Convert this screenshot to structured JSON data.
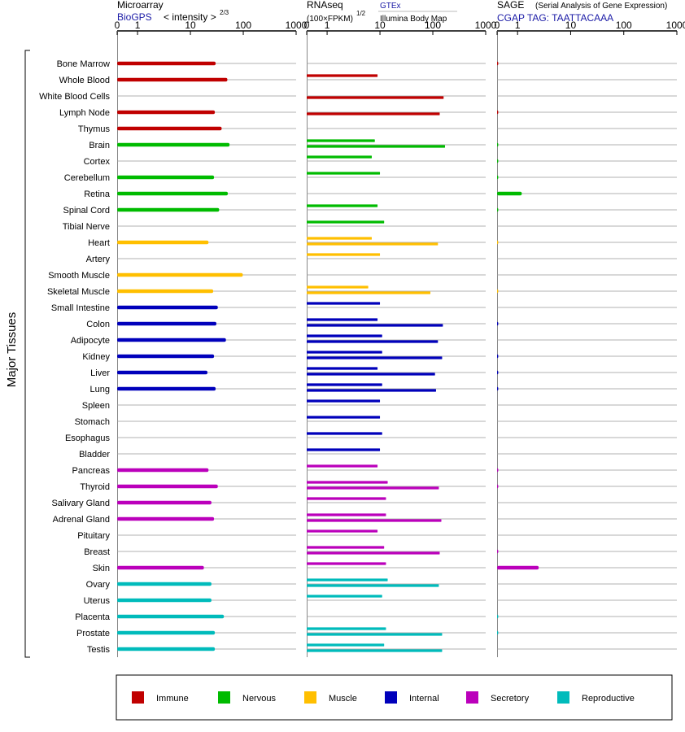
{
  "panels": {
    "microarray": {
      "title": "Microarray",
      "subtitle": "BioGPS",
      "scale_label": "< intensity >",
      "scale_exp": "2/3"
    },
    "rnaseq": {
      "title": "RNAseq",
      "unit_label": "(100×FPKM)",
      "unit_exp": "1/2",
      "legend_top": "GTEx",
      "legend_bottom": "Illumina Body Map"
    },
    "sage": {
      "title": "SAGE",
      "title_note": "(Serial Analysis of Gene Expression)",
      "tag_label": "CGAP TAG: TAATTACAAA"
    }
  },
  "y_axis_label": "Major Tissues",
  "tick_labels": [
    "0",
    "1",
    "10",
    "100",
    "1000"
  ],
  "legend": [
    {
      "name": "Immune",
      "color": "#c00000"
    },
    {
      "name": "Nervous",
      "color": "#00bb00"
    },
    {
      "name": "Muscle",
      "color": "#ffbf00"
    },
    {
      "name": "Internal",
      "color": "#0000bb"
    },
    {
      "name": "Secretory",
      "color": "#bb00bb"
    },
    {
      "name": "Reproductive",
      "color": "#00bbbb"
    }
  ],
  "chart_data": {
    "type": "bar",
    "orientation": "horizontal",
    "x_scale": "log (0, 1, 10, 100, 1000)",
    "xlim": [
      0,
      1000
    ],
    "categories": [
      "Bone Marrow",
      "Whole Blood",
      "White Blood Cells",
      "Lymph Node",
      "Thymus",
      "Brain",
      "Cortex",
      "Cerebellum",
      "Retina",
      "Spinal Cord",
      "Tibial Nerve",
      "Heart",
      "Artery",
      "Smooth Muscle",
      "Skeletal Muscle",
      "Small Intestine",
      "Colon",
      "Adipocyte",
      "Kidney",
      "Liver",
      "Lung",
      "Spleen",
      "Stomach",
      "Esophagus",
      "Bladder",
      "Pancreas",
      "Thyroid",
      "Salivary Gland",
      "Adrenal Gland",
      "Pituitary",
      "Breast",
      "Skin",
      "Ovary",
      "Uterus",
      "Placenta",
      "Prostate",
      "Testis"
    ],
    "groups": [
      "Immune",
      "Immune",
      "Immune",
      "Immune",
      "Immune",
      "Nervous",
      "Nervous",
      "Nervous",
      "Nervous",
      "Nervous",
      "Nervous",
      "Muscle",
      "Muscle",
      "Muscle",
      "Muscle",
      "Internal",
      "Internal",
      "Internal",
      "Internal",
      "Internal",
      "Internal",
      "Internal",
      "Internal",
      "Internal",
      "Internal",
      "Secretory",
      "Secretory",
      "Secretory",
      "Secretory",
      "Secretory",
      "Secretory",
      "Secretory",
      "Reproductive",
      "Reproductive",
      "Reproductive",
      "Reproductive",
      "Reproductive"
    ],
    "series": [
      {
        "name": "BioGPS",
        "values": [
          30,
          50,
          null,
          29,
          39,
          55,
          null,
          28,
          51,
          35,
          null,
          22,
          null,
          98,
          27,
          33,
          31,
          47,
          28,
          21,
          30,
          null,
          null,
          null,
          null,
          22,
          33,
          25,
          28,
          null,
          null,
          18,
          25,
          25,
          43,
          29,
          29
        ]
      },
      {
        "name": "GTEx",
        "values": [
          null,
          9,
          null,
          null,
          null,
          8,
          7,
          10,
          null,
          9,
          12,
          7,
          10,
          null,
          6,
          10,
          9,
          11,
          11,
          9,
          11,
          10,
          10,
          11,
          10,
          9,
          14,
          13,
          13,
          9,
          12,
          13,
          14,
          11,
          null,
          13,
          12
        ]
      },
      {
        "name": "Illumina Body Map",
        "values": [
          null,
          null,
          160,
          135,
          null,
          170,
          null,
          null,
          null,
          null,
          null,
          125,
          null,
          null,
          90,
          null,
          155,
          125,
          150,
          110,
          115,
          null,
          null,
          null,
          null,
          null,
          130,
          null,
          145,
          null,
          135,
          null,
          130,
          null,
          null,
          150,
          150
        ]
      },
      {
        "name": "SAGE",
        "values": [
          0.05,
          null,
          null,
          0.05,
          null,
          0.05,
          0.05,
          0.05,
          1.2,
          0.05,
          null,
          0.02,
          null,
          null,
          0.02,
          null,
          0.05,
          null,
          0.05,
          0.05,
          0.05,
          null,
          null,
          null,
          null,
          0.05,
          0.05,
          null,
          null,
          null,
          0.05,
          2.5,
          null,
          null,
          0.03,
          0.03,
          null
        ]
      }
    ]
  }
}
